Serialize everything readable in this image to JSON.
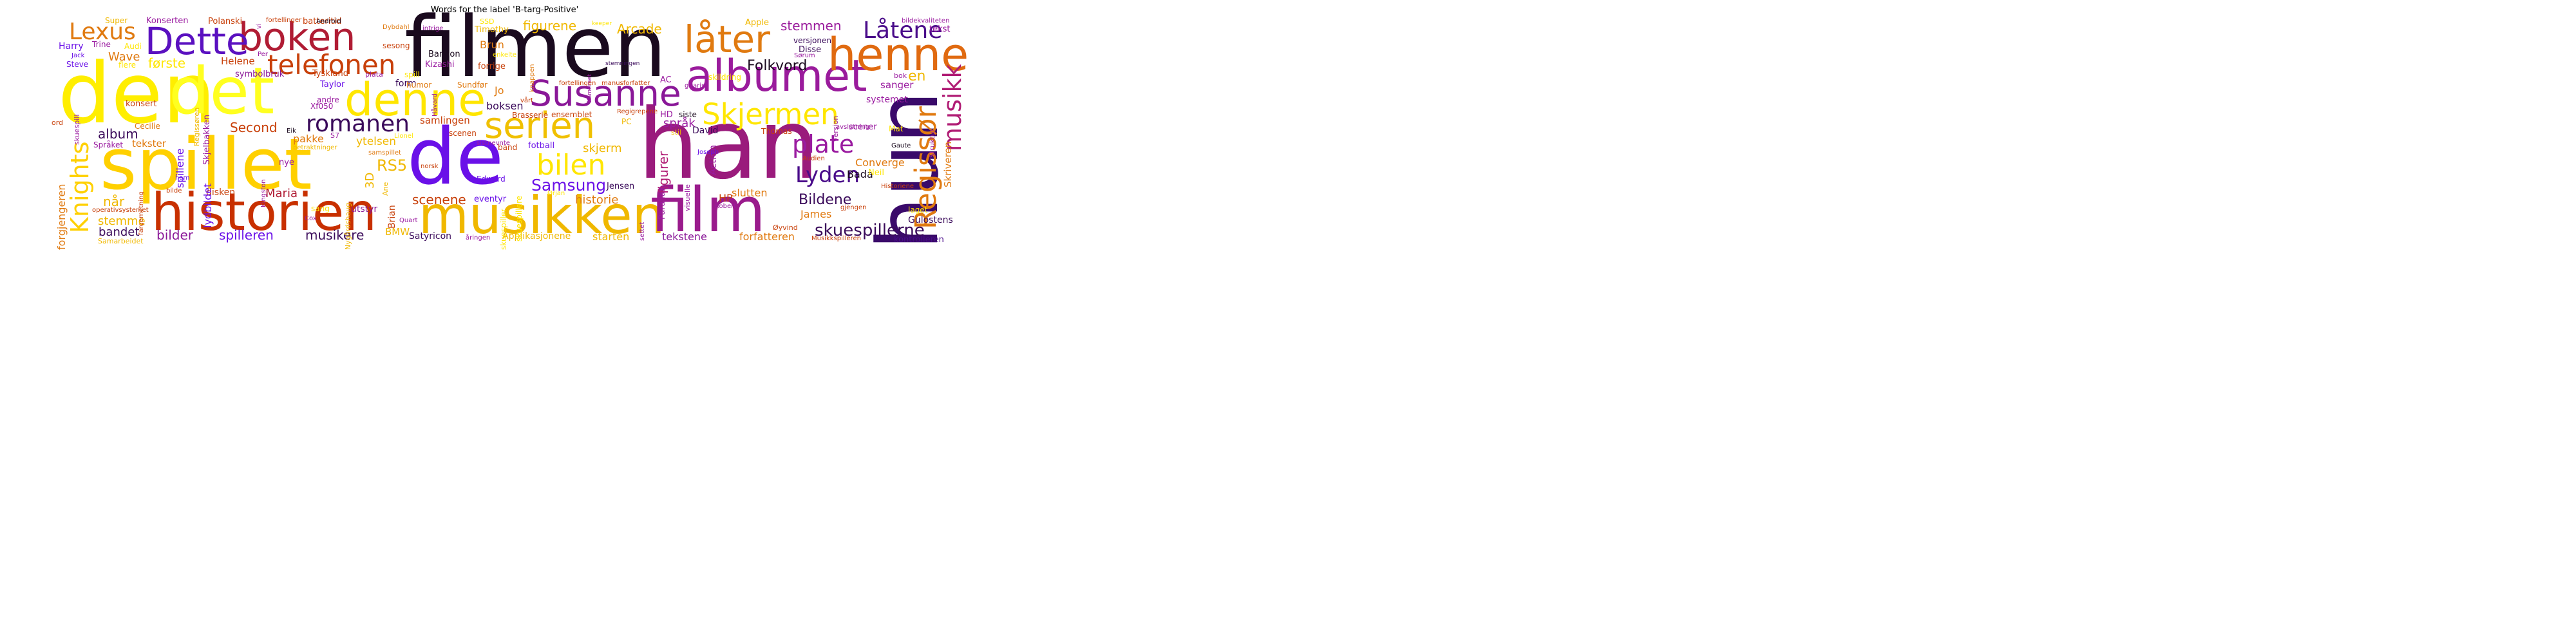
{
  "title": "Words for the label 'B-targ-Positive'",
  "words": [
    {
      "text": "filmen",
      "color": "#1a0a1e"
    },
    {
      "text": "han",
      "color": "#9a1b7c"
    },
    {
      "text": "den",
      "color": "#ffee00"
    },
    {
      "text": "spillet",
      "color": "#ffd000"
    },
    {
      "text": "de",
      "color": "#6a10e8"
    },
    {
      "text": "det",
      "color": "#ffff20"
    },
    {
      "text": "historien",
      "color": "#c83000"
    },
    {
      "text": "musikken",
      "color": "#f0b800"
    },
    {
      "text": "film",
      "color": "#9a1b8c"
    },
    {
      "text": "hun",
      "color": "#3a0a6a"
    },
    {
      "text": "boken",
      "color": "#b01c34"
    },
    {
      "text": "Dette",
      "color": "#5a10c0"
    },
    {
      "text": "denne",
      "color": "#ffe600"
    },
    {
      "text": "albumet",
      "color": "#9a1b9c"
    },
    {
      "text": "Susanne",
      "color": "#8a1898"
    },
    {
      "text": "henne",
      "color": "#e06a10"
    },
    {
      "text": "låter",
      "color": "#e07a10"
    },
    {
      "text": "serien",
      "color": "#f0c000"
    },
    {
      "text": "telefonen",
      "color": "#c8400a"
    },
    {
      "text": "Lexus",
      "color": "#e07a10"
    },
    {
      "text": "Skjermen",
      "color": "#ffe600"
    },
    {
      "text": "Låtene",
      "color": "#4a0c8a"
    },
    {
      "text": "romanen",
      "color": "#3a0a5a"
    },
    {
      "text": "bilen",
      "color": "#ffe600"
    },
    {
      "text": "Regissør",
      "color": "#e07a10"
    },
    {
      "text": "musikk",
      "color": "#b01c74"
    },
    {
      "text": "plate",
      "color": "#9a1ba0"
    },
    {
      "text": "Lyden",
      "color": "#4a0c8a"
    },
    {
      "text": "Knights",
      "color": "#ffd000"
    },
    {
      "text": "Samsung",
      "color": "#6a10e8"
    },
    {
      "text": "skuespillerne",
      "color": "#3a0a5a"
    },
    {
      "text": "Folkvord",
      "color": "#1a0a1e"
    },
    {
      "text": "Bildene",
      "color": "#3a0a5a"
    },
    {
      "text": "figurene",
      "color": "#f0b800"
    },
    {
      "text": "Arcade",
      "color": "#f0b800"
    },
    {
      "text": "stemmen",
      "color": "#9a1b9c"
    },
    {
      "text": "første",
      "color": "#ffe600"
    },
    {
      "text": "Wave",
      "color": "#e07a10"
    },
    {
      "text": "Second",
      "color": "#c8400a"
    },
    {
      "text": "album",
      "color": "#3a0a5a"
    },
    {
      "text": "RS5",
      "color": "#f0b800"
    },
    {
      "text": "scenene",
      "color": "#c8400a"
    },
    {
      "text": "bilder",
      "color": "#8a1898"
    },
    {
      "text": "spilleren",
      "color": "#6a10e8"
    },
    {
      "text": "musikere",
      "color": "#3a0a5a"
    },
    {
      "text": "bandet",
      "color": "#3a0a5a"
    },
    {
      "text": "stemme",
      "color": "#f0b800"
    },
    {
      "text": "når",
      "color": "#f0b800"
    },
    {
      "text": "Maria",
      "color": "#b01c34"
    },
    {
      "text": "figurer",
      "color": "#b01c74"
    },
    {
      "text": "Bada",
      "color": "#1a0a1e"
    },
    {
      "text": "HP",
      "color": "#c8400a"
    },
    {
      "text": "James",
      "color": "#e07a10"
    },
    {
      "text": "Converge",
      "color": "#e07a10"
    },
    {
      "text": "Skriveren",
      "color": "#e07a10"
    },
    {
      "text": "Gulostens",
      "color": "#3a0a5a"
    },
    {
      "text": "forfatteren",
      "color": "#e07a10"
    },
    {
      "text": "kontrolleren",
      "color": "#4a0c8a"
    },
    {
      "text": "tekstene",
      "color": "#8a1898"
    },
    {
      "text": "starten",
      "color": "#f0b800"
    },
    {
      "text": "Applikasjonene",
      "color": "#f0b800"
    },
    {
      "text": "historie",
      "color": "#e07a10"
    },
    {
      "text": "slutten",
      "color": "#e07a10"
    },
    {
      "text": "skjerm",
      "color": "#f0b800"
    },
    {
      "text": "Satyricon",
      "color": "#3a0a5a"
    },
    {
      "text": "BMW",
      "color": "#f0b800"
    },
    {
      "text": "utstyr",
      "color": "#8a1898"
    },
    {
      "text": "disken",
      "color": "#c8400a"
    },
    {
      "text": "Jensen",
      "color": "#3a0a5a"
    },
    {
      "text": "språk",
      "color": "#9a1ba0"
    },
    {
      "text": "sanger",
      "color": "#9a1ba0"
    },
    {
      "text": "systemet",
      "color": "#9a1ba0"
    },
    {
      "text": "en",
      "color": "#f0b800"
    },
    {
      "text": "samlingen",
      "color": "#c8400a"
    },
    {
      "text": "boksen",
      "color": "#3a0a5a"
    },
    {
      "text": "Brun",
      "color": "#e07a10"
    },
    {
      "text": "Helene",
      "color": "#c8400a"
    },
    {
      "text": "pakke",
      "color": "#e07a10"
    },
    {
      "text": "ytelsen",
      "color": "#f0b800"
    },
    {
      "text": "tekster",
      "color": "#e07a10"
    },
    {
      "text": "konsert",
      "color": "#c8400a"
    },
    {
      "text": "Taylor",
      "color": "#6a10e8"
    },
    {
      "text": "form",
      "color": "#3a0a5a"
    },
    {
      "text": "Jo",
      "color": "#e07a10"
    },
    {
      "text": "Action",
      "color": "#9a1ba0"
    },
    {
      "text": "David",
      "color": "#3a0a5a"
    },
    {
      "text": "Thomas",
      "color": "#c8400a"
    },
    {
      "text": "Neil",
      "color": "#ffe600"
    },
    {
      "text": "Harry",
      "color": "#6a10e8"
    },
    {
      "text": "Konserten",
      "color": "#9a1ba0"
    },
    {
      "text": "Polanski",
      "color": "#c8400a"
    },
    {
      "text": "batteritid",
      "color": "#c8400a"
    },
    {
      "text": "Tyskland",
      "color": "#c8400a"
    },
    {
      "text": "Steve",
      "color": "#6a10e8"
    },
    {
      "text": "3D",
      "color": "#f0b800"
    },
    {
      "text": "Edward",
      "color": "#6a10e8"
    },
    {
      "text": "fotball",
      "color": "#6a10e8"
    },
    {
      "text": "nye",
      "color": "#9a1ba0"
    },
    {
      "text": "Brian",
      "color": "#c8400a"
    },
    {
      "text": "eventyr",
      "color": "#6a10e8"
    },
    {
      "text": "lydbildet",
      "color": "#6a10e8"
    },
    {
      "text": "spillene",
      "color": "#6a10e8"
    },
    {
      "text": "forgjengeren",
      "color": "#e07a10"
    },
    {
      "text": "Skjelbakken",
      "color": "#9a1ba0"
    },
    {
      "text": "symbolbruk",
      "color": "#8a1898"
    },
    {
      "text": "Bannon",
      "color": "#1a0a1e"
    },
    {
      "text": "Kizashi",
      "color": "#9a1ba0"
    },
    {
      "text": "forrige",
      "color": "#c8400a"
    },
    {
      "text": "Brasserie",
      "color": "#c8400a"
    },
    {
      "text": "ensemblet",
      "color": "#c8400a"
    },
    {
      "text": "humor",
      "color": "#e07a10"
    },
    {
      "text": "Sundfør",
      "color": "#e07a10"
    },
    {
      "text": "andre",
      "color": "#9a1ba0"
    },
    {
      "text": "Xf050",
      "color": "#9a1ba0"
    },
    {
      "text": "Cecilie",
      "color": "#e07a10"
    },
    {
      "text": "Språket",
      "color": "#9a1ba0"
    },
    {
      "text": "skildring",
      "color": "#ffe600"
    },
    {
      "text": "stemningen",
      "color": "#3a0a5a"
    },
    {
      "text": "gitarist",
      "color": "#9a1ba0"
    },
    {
      "text": "Disse",
      "color": "#3a0a5a"
    },
    {
      "text": "versjonen",
      "color": "#3a0a5a"
    },
    {
      "text": "Sørum",
      "color": "#9a1ba0"
    },
    {
      "text": "bok",
      "color": "#9a1ba0"
    },
    {
      "text": "Apple",
      "color": "#f0b800"
    },
    {
      "text": "tekst",
      "color": "#9a1ba0"
    },
    {
      "text": "bildekvaliteten",
      "color": "#9a1ba0"
    },
    {
      "text": "Timothy",
      "color": "#f0b800"
    },
    {
      "text": "SSD",
      "color": "#ffe600"
    },
    {
      "text": "keeper",
      "color": "#ffe600"
    },
    {
      "text": "Super",
      "color": "#f0b800"
    },
    {
      "text": "Trine",
      "color": "#9a1ba0"
    },
    {
      "text": "Audi",
      "color": "#ffe600"
    },
    {
      "text": "flere",
      "color": "#ffe600"
    },
    {
      "text": "Jack",
      "color": "#6a10e8"
    },
    {
      "text": "ord",
      "color": "#c8400a"
    },
    {
      "text": "fortellinger",
      "color": "#c8400a"
    },
    {
      "text": "Android",
      "color": "#1a0a1e"
    },
    {
      "text": "Dybdahl",
      "color": "#e07a10"
    },
    {
      "text": "intrige",
      "color": "#9a1ba0"
    },
    {
      "text": "sesong",
      "color": "#c8400a"
    },
    {
      "text": "enkelte",
      "color": "#ffe600"
    },
    {
      "text": "knappen",
      "color": "#e07a10"
    },
    {
      "text": "Kameraet",
      "color": "#9a1ba0"
    },
    {
      "text": "fortellingen",
      "color": "#c8400a"
    },
    {
      "text": "manusforfatter",
      "color": "#c8400a"
    },
    {
      "text": "AC",
      "color": "#9a1ba0"
    },
    {
      "text": "vårt",
      "color": "#c8400a"
    },
    {
      "text": "Regigrepene",
      "color": "#c8400a"
    },
    {
      "text": "HD",
      "color": "#9a1ba0"
    },
    {
      "text": "siste",
      "color": "#1a0a1e"
    },
    {
      "text": "PC",
      "color": "#f0b800"
    },
    {
      "text": "stil",
      "color": "#f0b800"
    },
    {
      "text": "Eik",
      "color": "#1a0a1e"
    },
    {
      "text": "betraktninger",
      "color": "#f0b800"
    },
    {
      "text": "S7",
      "color": "#9a1ba0"
    },
    {
      "text": "Lionel",
      "color": "#ffe600"
    },
    {
      "text": "scenen",
      "color": "#c8400a"
    },
    {
      "text": "samspillet",
      "color": "#e07a10"
    },
    {
      "text": "sistnevnte",
      "color": "#9a1ba0"
    },
    {
      "text": "band",
      "color": "#c8400a"
    },
    {
      "text": "Joseph",
      "color": "#6a10e8"
    },
    {
      "text": "Audien",
      "color": "#c8400a"
    },
    {
      "text": "Gaute",
      "color": "#1a0a1e"
    },
    {
      "text": "Mat",
      "color": "#ffe600"
    },
    {
      "text": "avslutning",
      "color": "#9a1ba0"
    },
    {
      "text": "Struktur",
      "color": "#9a1ba0"
    },
    {
      "text": "scener",
      "color": "#9a1ba0"
    },
    {
      "text": "versjon",
      "color": "#9a1ba0"
    },
    {
      "text": "Historiene",
      "color": "#c8400a"
    },
    {
      "text": "Robert",
      "color": "#9a1ba0"
    },
    {
      "text": "gjengen",
      "color": "#c8400a"
    },
    {
      "text": "laget",
      "color": "#ffe600"
    },
    {
      "text": "Øyvind",
      "color": "#c8400a"
    },
    {
      "text": "Musikkspilleren",
      "color": "#c8400a"
    },
    {
      "text": "åringen",
      "color": "#9a1ba0"
    },
    {
      "text": "Ørjan",
      "color": "#ffe600"
    },
    {
      "text": "Parallax",
      "color": "#9a1ba0"
    },
    {
      "text": "visuelle",
      "color": "#9a1ba0"
    },
    {
      "text": "settet",
      "color": "#9a1ba0"
    },
    {
      "text": "skuespiller",
      "color": "#ffe600"
    },
    {
      "text": "skuespillere",
      "color": "#ffe600"
    },
    {
      "text": "norsk",
      "color": "#c8400a"
    },
    {
      "text": "Nygårdshaug",
      "color": "#f0b800"
    },
    {
      "text": "Kingston",
      "color": "#9a1ba0"
    },
    {
      "text": "sang",
      "color": "#ffe600"
    },
    {
      "text": "Ane",
      "color": "#f0b800"
    },
    {
      "text": "Quart",
      "color": "#9a1ba0"
    },
    {
      "text": "Cox",
      "color": "#9a1ba0"
    },
    {
      "text": "Samarbeidet",
      "color": "#f0b800"
    },
    {
      "text": "operativsystemet",
      "color": "#c8400a"
    },
    {
      "text": "fargemetning",
      "color": "#c8400a"
    },
    {
      "text": "ham",
      "color": "#6a10e8"
    },
    {
      "text": "bilde",
      "color": "#c8400a"
    },
    {
      "text": "Regissøren",
      "color": "#f0b800"
    },
    {
      "text": "skuespill",
      "color": "#9a1ba0"
    },
    {
      "text": "vi",
      "color": "#9a1ba0"
    },
    {
      "text": "Per",
      "color": "#9a1ba0"
    },
    {
      "text": "plata",
      "color": "#9a1ba0"
    },
    {
      "text": "spill",
      "color": "#ffe600"
    },
    {
      "text": "Håvard",
      "color": "#9a1ba0"
    }
  ]
}
